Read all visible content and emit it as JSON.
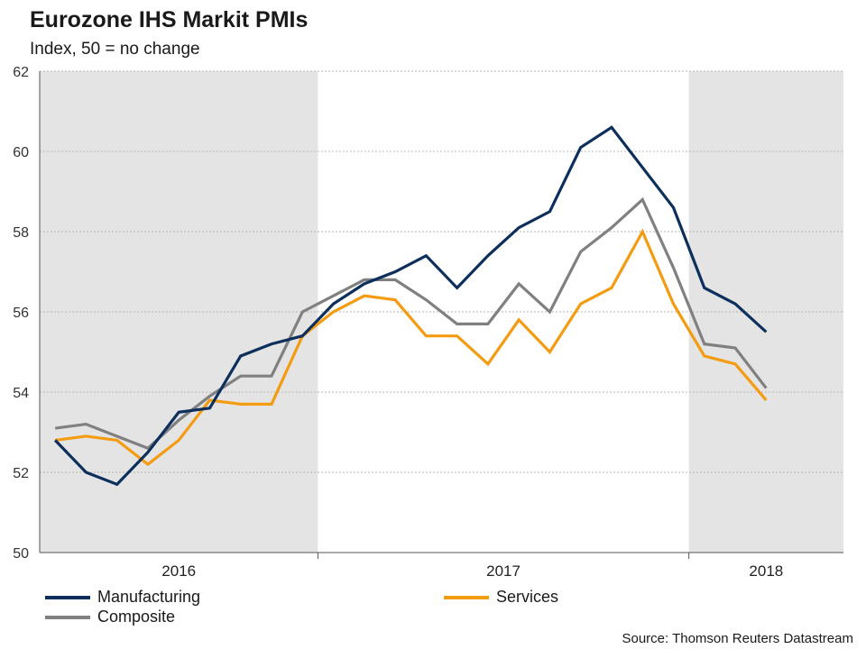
{
  "title": "Eurozone IHS Markit PMIs",
  "subtitle": "Index, 50 = no change",
  "source": "Source: Thomson Reuters Datastream",
  "chart_data": {
    "type": "line",
    "title": "Eurozone IHS Markit PMIs",
    "subtitle": "Index, 50 = no change",
    "ylim": [
      50,
      62
    ],
    "yticks": [
      50,
      52,
      54,
      56,
      58,
      60,
      62
    ],
    "grid": true,
    "x_period_labels": [
      "2016",
      "2017",
      "2018"
    ],
    "shaded_periods": [
      "2016",
      "2018"
    ],
    "x": [
      "2016-04",
      "2016-05",
      "2016-06",
      "2016-07",
      "2016-08",
      "2016-09",
      "2016-10",
      "2016-11",
      "2016-12",
      "2017-01",
      "2017-02",
      "2017-03",
      "2017-04",
      "2017-05",
      "2017-06",
      "2017-07",
      "2017-08",
      "2017-09",
      "2017-10",
      "2017-11",
      "2017-12",
      "2018-01",
      "2018-02",
      "2018-03",
      "2018-04",
      "2018-05"
    ],
    "series": [
      {
        "name": "Manufacturing",
        "color": "#0d2f5c",
        "values": [
          52.8,
          52.0,
          51.7,
          52.5,
          53.5,
          53.6,
          54.9,
          55.2,
          55.4,
          56.2,
          56.7,
          57.0,
          57.4,
          56.6,
          57.4,
          58.1,
          58.5,
          60.1,
          60.6,
          59.6,
          58.6,
          56.6,
          56.2,
          55.5,
          null,
          null
        ]
      },
      {
        "name": "Services",
        "color": "#f39c12",
        "values": [
          52.8,
          52.9,
          52.8,
          52.2,
          52.8,
          53.8,
          53.7,
          53.7,
          55.4,
          56.0,
          56.4,
          56.3,
          55.4,
          55.4,
          54.7,
          55.8,
          55.0,
          56.2,
          56.6,
          58.0,
          56.2,
          54.9,
          54.7,
          53.8,
          null,
          null
        ]
      },
      {
        "name": "Composite",
        "color": "#808080",
        "values": [
          53.1,
          53.2,
          52.9,
          52.6,
          53.3,
          53.9,
          54.4,
          54.4,
          56.0,
          56.4,
          56.8,
          56.8,
          56.3,
          55.7,
          55.7,
          56.7,
          56.0,
          57.5,
          58.1,
          58.8,
          57.1,
          55.2,
          55.1,
          54.1,
          null,
          null
        ]
      }
    ],
    "legend_position": "bottom"
  }
}
